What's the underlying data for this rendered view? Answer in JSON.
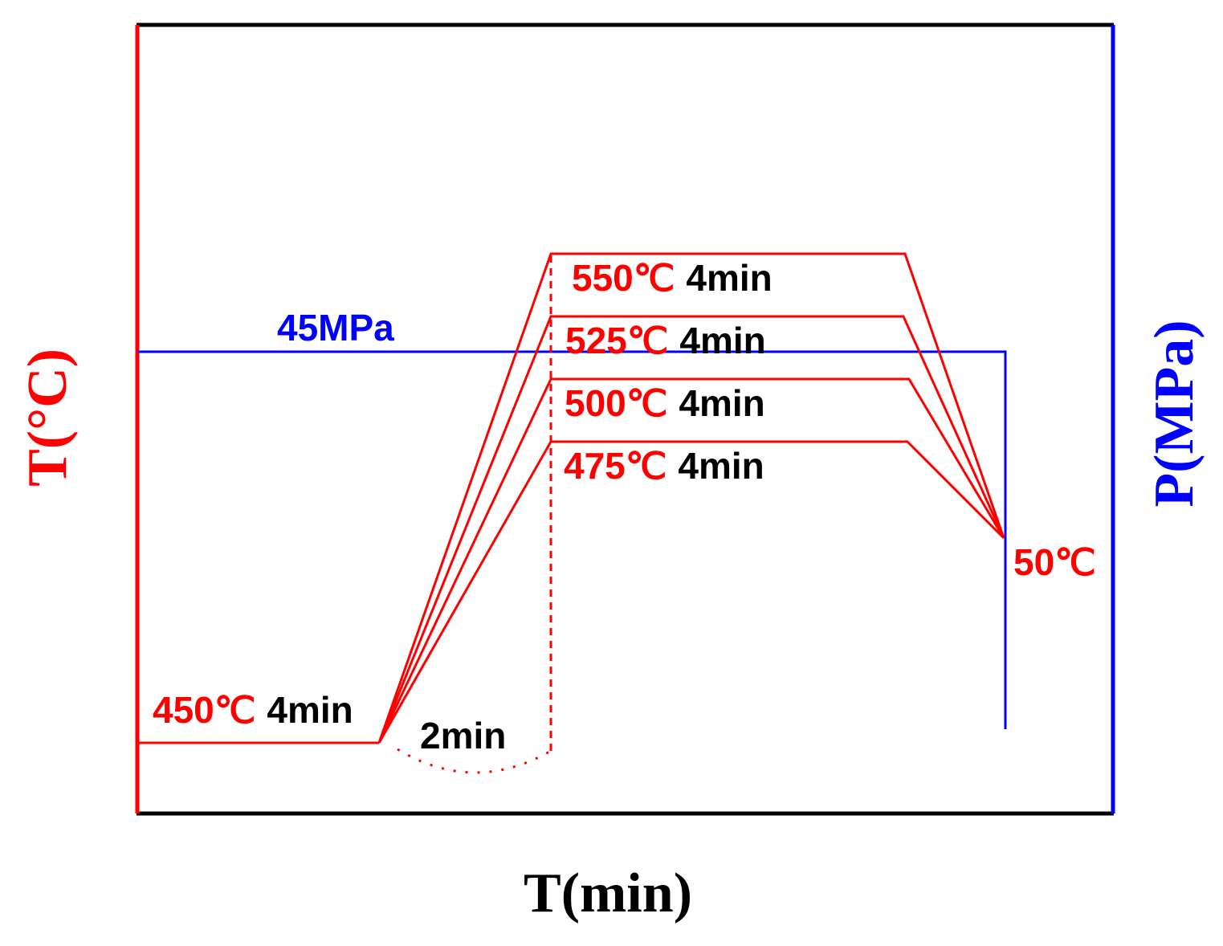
{
  "chart_data": {
    "type": "line",
    "xlabel": "T(min)",
    "ylabel_left": "T(°C)",
    "ylabel_right": "P(MPa)",
    "colors": {
      "temperature": "#ff0000",
      "pressure": "#0000ff",
      "frame": "#000000",
      "black_text": "#000000"
    },
    "preheat": {
      "temp": "450℃",
      "time": "4min"
    },
    "ramp": {
      "time": "2min"
    },
    "final": {
      "temp": "50℃"
    },
    "pressure": {
      "label": "45MPa",
      "value": 45
    },
    "series": [
      {
        "temp_value": 550,
        "temp": "550℃",
        "time": "4min"
      },
      {
        "temp_value": 525,
        "temp": "525℃",
        "time": "4min"
      },
      {
        "temp_value": 500,
        "temp": "500℃",
        "time": "4min"
      },
      {
        "temp_value": 475,
        "temp": "475℃",
        "time": "4min"
      }
    ]
  }
}
